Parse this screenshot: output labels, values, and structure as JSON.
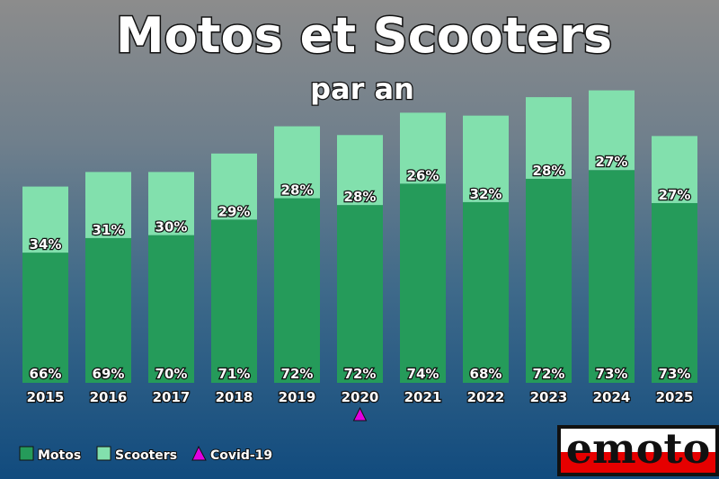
{
  "chart_data": {
    "type": "bar",
    "stacked": true,
    "title": "Motos et Scooters",
    "subtitle": "par an",
    "categories": [
      "2015",
      "2016",
      "2017",
      "2018",
      "2019",
      "2020",
      "2021",
      "2022",
      "2023",
      "2024",
      "2025"
    ],
    "totals": [
      202,
      217,
      217,
      236,
      264,
      255,
      278,
      275,
      294,
      301,
      254
    ],
    "series": [
      {
        "name": "Motos",
        "color": "#259b5a",
        "percent_labels": [
          "66%",
          "69%",
          "70%",
          "71%",
          "72%",
          "72%",
          "74%",
          "68%",
          "72%",
          "73%",
          "73%"
        ],
        "values": [
          134,
          149,
          152,
          168,
          190,
          183,
          205,
          186,
          210,
          219,
          185
        ]
      },
      {
        "name": "Scooters",
        "color": "#82e0ad",
        "percent_labels": [
          "34%",
          "31%",
          "30%",
          "29%",
          "28%",
          "28%",
          "26%",
          "32%",
          "28%",
          "27%",
          "27%"
        ],
        "values": [
          68,
          68,
          65,
          68,
          74,
          72,
          73,
          89,
          84,
          82,
          69
        ]
      }
    ],
    "ylim": [
      0,
      320
    ],
    "annotations": [
      {
        "category": "2020",
        "label": "Covid-19",
        "marker": "triangle",
        "color": "#e100e1"
      }
    ],
    "legend": {
      "placement": "bottom-left",
      "items": [
        "Motos",
        "Scooters",
        "Covid-19"
      ]
    }
  },
  "logo": {
    "text": "emoto",
    "colors": {
      "top": "#111111",
      "bottom": "#e60000"
    }
  }
}
